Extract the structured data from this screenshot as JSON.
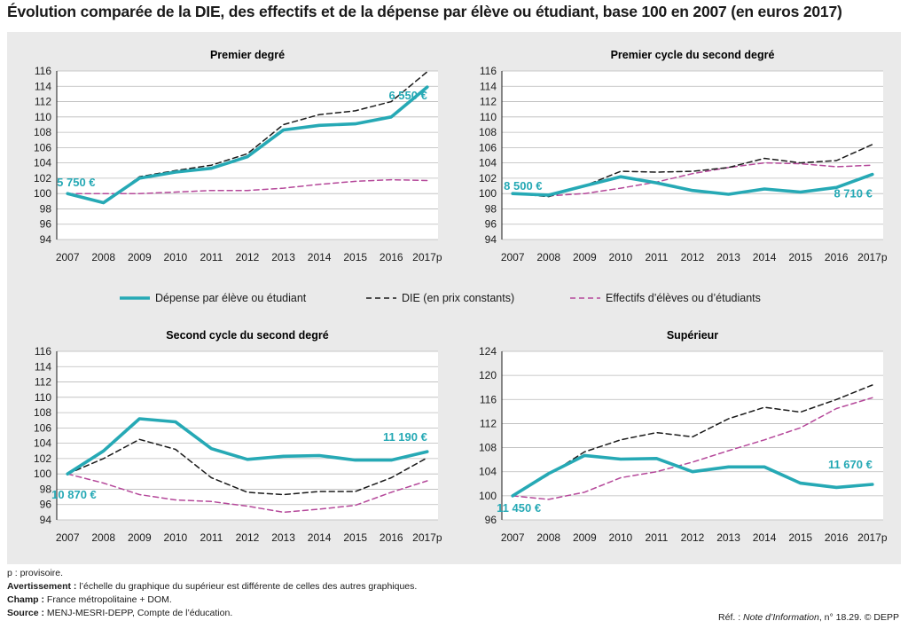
{
  "title": "Évolution comparée de la DIE, des effectifs et de la dépense par élève ou étudiant, base 100 en 2007 (en euros 2017)",
  "colors": {
    "depense": "#26a9b5",
    "die": "#1a1a1a",
    "effectifs": "#b5489a",
    "panel": "#eaeaea"
  },
  "legend": {
    "depense": "Dépense par élève ou étudiant",
    "die": "DIE (en prix constants)",
    "effectifs": "Effectifs d’élèves ou d’étudiants"
  },
  "chart_data": [
    {
      "type": "line",
      "title": "Premier degré",
      "x": [
        "2007",
        "2008",
        "2009",
        "2010",
        "2011",
        "2012",
        "2013",
        "2014",
        "2015",
        "2016",
        "2017p"
      ],
      "ylim": [
        94,
        116
      ],
      "yticks": [
        94,
        96,
        98,
        100,
        102,
        104,
        106,
        108,
        110,
        112,
        114,
        116
      ],
      "series": [
        {
          "key": "depense",
          "name": "Dépense par élève ou étudiant",
          "values": [
            100,
            98.8,
            102.0,
            102.8,
            103.3,
            104.8,
            108.3,
            108.9,
            109.1,
            110.0,
            113.9
          ]
        },
        {
          "key": "die",
          "name": "DIE (en prix constants)",
          "values": [
            100,
            98.7,
            102.2,
            103.0,
            103.7,
            105.2,
            109.0,
            110.3,
            110.8,
            112.0,
            115.9
          ]
        },
        {
          "key": "effectifs",
          "name": "Effectifs d’élèves ou d’étudiants",
          "values": [
            100,
            100,
            100,
            100.2,
            100.4,
            100.4,
            100.7,
            101.2,
            101.6,
            101.8,
            101.7
          ]
        }
      ],
      "annotations": {
        "start": "5 750 €",
        "end": "6 550 €"
      }
    },
    {
      "type": "line",
      "title": "Premier cycle du second degré",
      "x": [
        "2007",
        "2008",
        "2009",
        "2010",
        "2011",
        "2012",
        "2013",
        "2014",
        "2015",
        "2016",
        "2017p"
      ],
      "ylim": [
        94,
        116
      ],
      "yticks": [
        94,
        96,
        98,
        100,
        102,
        104,
        106,
        108,
        110,
        112,
        114,
        116
      ],
      "series": [
        {
          "key": "depense",
          "name": "Dépense par élève ou étudiant",
          "values": [
            100,
            99.8,
            101.0,
            102.2,
            101.4,
            100.4,
            99.9,
            100.6,
            100.2,
            100.8,
            102.5
          ]
        },
        {
          "key": "die",
          "name": "DIE (en prix constants)",
          "values": [
            100,
            99.6,
            101.0,
            102.9,
            102.8,
            102.9,
            103.4,
            104.6,
            104.0,
            104.3,
            106.4
          ]
        },
        {
          "key": "effectifs",
          "name": "Effectifs d’élèves ou d’étudiants",
          "values": [
            100,
            99.7,
            100.0,
            100.7,
            101.5,
            102.6,
            103.4,
            104.0,
            103.9,
            103.5,
            103.7
          ]
        }
      ],
      "annotations": {
        "start": "8 500 €",
        "end": "8 710 €"
      }
    },
    {
      "type": "line",
      "title": "Second cycle du second degré",
      "x": [
        "2007",
        "2008",
        "2009",
        "2010",
        "2011",
        "2012",
        "2013",
        "2014",
        "2015",
        "2016",
        "2017p"
      ],
      "ylim": [
        94,
        116
      ],
      "yticks": [
        94,
        96,
        98,
        100,
        102,
        104,
        106,
        108,
        110,
        112,
        114,
        116
      ],
      "series": [
        {
          "key": "depense",
          "name": "Dépense par élève ou étudiant",
          "values": [
            100,
            103.0,
            107.2,
            106.8,
            103.3,
            101.9,
            102.3,
            102.4,
            101.8,
            101.8,
            102.9
          ]
        },
        {
          "key": "die",
          "name": "DIE (en prix constants)",
          "values": [
            100,
            102.0,
            104.5,
            103.2,
            99.5,
            97.6,
            97.3,
            97.7,
            97.7,
            99.5,
            102.1
          ]
        },
        {
          "key": "effectifs",
          "name": "Effectifs d’élèves ou d’étudiants",
          "values": [
            100,
            98.8,
            97.3,
            96.6,
            96.4,
            95.8,
            95.0,
            95.4,
            95.9,
            97.6,
            99.1
          ]
        }
      ],
      "annotations": {
        "start": "10 870 €",
        "end": "11 190 €"
      }
    },
    {
      "type": "line",
      "title": "Supérieur",
      "x": [
        "2007",
        "2008",
        "2009",
        "2010",
        "2011",
        "2012",
        "2013",
        "2014",
        "2015",
        "2016",
        "2017p"
      ],
      "ylim": [
        96,
        124
      ],
      "yticks": [
        96,
        100,
        104,
        108,
        112,
        116,
        120,
        124
      ],
      "series": [
        {
          "key": "depense",
          "name": "Dépense par élève ou étudiant",
          "values": [
            100,
            103.7,
            106.7,
            106.1,
            106.2,
            104.0,
            104.8,
            104.8,
            102.1,
            101.4,
            101.9
          ]
        },
        {
          "key": "die",
          "name": "DIE (en prix constants)",
          "values": [
            100,
            103.5,
            107.3,
            109.3,
            110.5,
            109.8,
            112.8,
            114.7,
            113.9,
            116.0,
            118.4
          ]
        },
        {
          "key": "effectifs",
          "name": "Effectifs d’élèves ou d’étudiants",
          "values": [
            100,
            99.4,
            100.6,
            103.0,
            104.0,
            105.6,
            107.5,
            109.3,
            111.3,
            114.5,
            116.3
          ]
        }
      ],
      "annotations": {
        "start": "11 450 €",
        "end": "11 670 €"
      }
    }
  ],
  "footnotes": {
    "provisoire": "p : provisoire.",
    "avert_label": "Avertissement :",
    "avert_text": " l’échelle du graphique du supérieur est différente de celles des autres graphiques.",
    "champ_label": "Champ :",
    "champ_text": " France métropolitaine + DOM.",
    "source_label": "Source :",
    "source_text": " MENJ-MESRI-DEPP, Compte de l’éducation.",
    "ref_prefix": "Réf. : ",
    "ref_italic": "Note d’Information",
    "ref_suffix": ", n° 18.29. © DEPP"
  }
}
